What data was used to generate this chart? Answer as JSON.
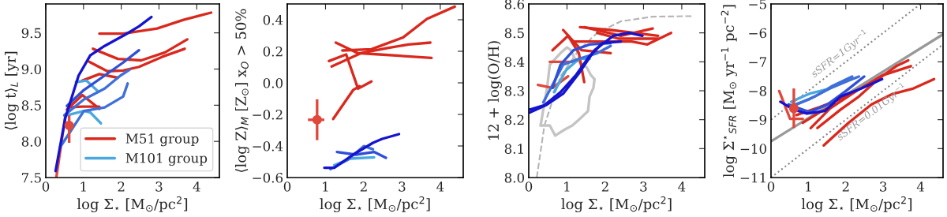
{
  "chart_data": [
    {
      "type": "line",
      "xlabel": "log Σ$_{⋆}$ [M$_{⊙}$/pc$^{2}$]",
      "ylabel": "⟨log t⟩$_{L}$ [yr]",
      "xlim": [
        0,
        4.6
      ],
      "ylim": [
        7.5,
        9.9
      ],
      "xticks": [
        0,
        1,
        2,
        3,
        4
      ],
      "yticks": [
        7.5,
        {
          "value": 8.0,
          "label": "8.0"
        },
        8.5,
        {
          "value": 9.0,
          "label": "9.0"
        },
        9.5
      ],
      "grid": false,
      "legend": "bottom right",
      "series": [
        {
          "name": "M51 group",
          "color": "#d9291e",
          "x": [
            1.42,
            2.05,
            2.95,
            3.65,
            4.38
          ],
          "values": [
            9.49,
            9.49,
            9.56,
            9.68,
            9.78
          ]
        },
        {
          "color": "#d9291e",
          "x": [
            1.25,
            1.91,
            2.53,
            3.16,
            3.75
          ],
          "values": [
            9.28,
            9.14,
            9.12,
            9.23,
            9.41
          ]
        },
        {
          "color": "#d9291e",
          "x": [
            1.15,
            1.63,
            2.05,
            2.47,
            3.09,
            3.68
          ],
          "values": [
            9.1,
            8.97,
            8.98,
            9.03,
            9.17,
            9.28
          ]
        },
        {
          "color": "#d9291e",
          "x": [
            0.97,
            1.42,
            1.91
          ],
          "values": [
            8.84,
            8.93,
            8.88
          ]
        },
        {
          "color": "#d9291e",
          "x": [
            0.56,
            0.97,
            1.42
          ],
          "values": [
            8.44,
            8.64,
            8.45
          ]
        },
        {
          "color": "#d9291e",
          "x": [
            0.62,
            0.94,
            1.42
          ],
          "values": [
            8.47,
            8.48,
            8.48
          ]
        },
        {
          "color": "#e0483c",
          "x": [
            0.28,
            0.52
          ],
          "values": [
            7.5,
            8.36
          ]
        },
        {
          "name": "M101 group",
          "color": "#4aa8de",
          "x": [
            0.56,
            1.01,
            1.18,
            1.46
          ],
          "values": [
            8.36,
            8.42,
            8.4,
            8.25
          ]
        },
        {
          "color": "#4aa8de",
          "x": [
            0.8,
            1.08,
            1.39
          ],
          "values": [
            8.82,
            8.84,
            8.69
          ]
        },
        {
          "color": "#3f6fd8",
          "x": [
            0.38,
            1.01,
            1.56,
            2.05,
            2.17
          ],
          "values": [
            7.92,
            8.42,
            8.47,
            8.62,
            8.8
          ]
        },
        {
          "color": "#3f6fd8",
          "x": [
            0.49,
            1.01,
            1.56,
            1.98,
            2.22
          ],
          "values": [
            8.36,
            8.58,
            8.73,
            8.91,
            8.99
          ]
        },
        {
          "color": "#2f4fd8",
          "x": [
            0.56,
            1.01,
            1.56,
            2.05,
            2.47
          ],
          "values": [
            8.49,
            8.71,
            8.91,
            9.09,
            9.26
          ]
        },
        {
          "color": "#1414d0",
          "x": [
            0.26,
            0.52,
            0.87,
            1.18,
            1.56,
            2.12,
            2.47,
            2.8
          ],
          "values": [
            7.59,
            8.33,
            8.91,
            9.19,
            9.32,
            9.48,
            9.59,
            9.72
          ]
        },
        {
          "type": "scatter",
          "marker": "circle",
          "color": "#e0483c",
          "x": [
            0.62
          ],
          "values": [
            8.22
          ],
          "errors": [
            [
              7.98,
              8.36
            ]
          ]
        }
      ]
    },
    {
      "type": "line",
      "xlabel": "log Σ$_{⋆}$ [M$_{⊙}$/pc$^{2}$]",
      "ylabel": "⟨log Z⟩$_{M}$ [Z$_{⊙}$] x$_{O}$ > 50%",
      "xlim": [
        0,
        4.6
      ],
      "ylim": [
        -0.6,
        0.5
      ],
      "xticks": [
        0,
        1,
        2,
        3,
        4
      ],
      "yticks": [
        {
          "value": -0.6,
          "label": "−0.6"
        },
        {
          "value": -0.4,
          "label": "−0.4"
        },
        {
          "value": -0.2,
          "label": "−0.2"
        },
        {
          "value": 0.0,
          "label": "0.0"
        },
        0.2,
        0.4
      ],
      "grid": false,
      "series": [
        {
          "color": "#d9291e",
          "x": [
            1.44,
            2.2,
            3.03,
            3.65,
            4.38
          ],
          "values": [
            0.205,
            0.213,
            0.288,
            0.405,
            0.483
          ]
        },
        {
          "color": "#d9291e",
          "x": [
            1.16,
            1.92,
            2.62,
            3.17,
            3.74
          ],
          "values": [
            0.104,
            0.188,
            0.221,
            0.243,
            0.255
          ]
        },
        {
          "color": "#d9291e",
          "x": [
            1.27,
            1.85,
            2.41,
            3.77
          ],
          "values": [
            0.255,
            0.188,
            0.18,
            0.158
          ]
        },
        {
          "color": "#d9291e",
          "x": [
            1.09,
            1.54,
            1.85,
            2.2
          ],
          "values": [
            0.138,
            0.18,
            -0.037,
            0.009
          ]
        },
        {
          "color": "#d9291e",
          "x": [
            1.2,
            1.72,
            1.89
          ],
          "values": [
            -0.229,
            -0.046,
            -0.021
          ]
        },
        {
          "color": "#4aa8de",
          "x": [
            1.23,
            1.65,
            2.27
          ],
          "values": [
            -0.522,
            -0.48,
            -0.472
          ]
        },
        {
          "color": "#3f6fd8",
          "x": [
            1.13,
            1.58,
            2.0,
            2.24
          ],
          "values": [
            -0.547,
            -0.488,
            -0.401,
            -0.421
          ]
        },
        {
          "color": "#2f4fd8",
          "x": [
            1.3,
            1.79,
            2.27,
            2.58
          ],
          "values": [
            -0.438,
            -0.455,
            -0.438,
            -0.475
          ]
        },
        {
          "color": "#1414d0",
          "x": [
            0.97,
            1.23,
            1.72,
            2.24,
            2.48,
            2.92
          ],
          "values": [
            -0.538,
            -0.538,
            -0.455,
            -0.38,
            -0.355,
            -0.325
          ]
        },
        {
          "type": "scatter",
          "marker": "circle",
          "color": "#e0483c",
          "x": [
            0.78
          ],
          "values": [
            -0.234
          ],
          "errors": [
            [
              -0.363,
              -0.104
            ]
          ],
          "xerrors": [
            [
              0.54,
              0.97
            ]
          ]
        }
      ]
    },
    {
      "type": "line",
      "xlabel": "log Σ$_{⋆}$ [M$_{⊙}$/pc$^{2}$]",
      "ylabel": "12 + log(O/H)",
      "xlim": [
        0,
        4.6
      ],
      "ylim": [
        8.0,
        8.6
      ],
      "xticks": [
        0,
        1,
        2,
        3,
        4
      ],
      "yticks": [
        {
          "value": 8.0,
          "label": "8.0"
        },
        8.1,
        8.2,
        8.3,
        8.4,
        8.5,
        8.6
      ],
      "grid": false,
      "series": [
        {
          "color": "#b4b4b4",
          "line_style": "dashed",
          "x": [
            0.21,
            0.41,
            0.83,
            1.31,
            1.79,
            2.41,
            3.24,
            4.28
          ],
          "values": [
            8.0,
            8.18,
            8.35,
            8.44,
            8.5,
            8.54,
            8.556,
            8.558
          ]
        },
        {
          "color": "#c4c4c4",
          "x": [
            0.31,
            0.38,
            0.48,
            0.55,
            0.83,
            1.0,
            1.1,
            1.21,
            1.52,
            1.62,
            1.72
          ],
          "values": [
            8.18,
            8.235,
            8.31,
            8.39,
            8.43,
            8.45,
            8.44,
            8.41,
            8.38,
            8.355,
            8.34
          ]
        },
        {
          "color": "#c4c4c4",
          "x": [
            0.31,
            0.55,
            0.69,
            0.93,
            1.14,
            1.31,
            1.55,
            1.59,
            1.69,
            1.72
          ],
          "values": [
            8.18,
            8.18,
            8.145,
            8.165,
            8.18,
            8.2,
            8.23,
            8.28,
            8.31,
            8.34
          ]
        },
        {
          "color": "#d9291e",
          "x": [
            0.9,
            1.38,
            2.14
          ],
          "values": [
            8.51,
            8.44,
            8.43
          ]
        },
        {
          "color": "#d9291e",
          "x": [
            0.62,
            1.03,
            1.31,
            1.45
          ],
          "values": [
            8.44,
            8.49,
            8.43,
            8.33
          ]
        },
        {
          "color": "#d9291e",
          "x": [
            1.34,
            2.14,
            3.38
          ],
          "values": [
            8.52,
            8.51,
            8.49
          ]
        },
        {
          "color": "#d9291e",
          "x": [
            1.45,
            2.41,
            3.24
          ],
          "values": [
            8.52,
            8.49,
            8.515
          ]
        },
        {
          "color": "#d9291e",
          "x": [
            1.17,
            2.69,
            3.1,
            3.72
          ],
          "values": [
            8.47,
            8.47,
            8.46,
            8.5
          ]
        },
        {
          "color": "#d9291e",
          "x": [
            1.79,
            2.34,
            3.38
          ],
          "values": [
            8.5,
            8.48,
            8.48
          ]
        },
        {
          "color": "#e0483c",
          "x": [
            0.55,
            1.17
          ],
          "values": [
            8.4,
            8.4
          ]
        },
        {
          "color": "#e0483c",
          "x": [
            0.24,
            0.62,
            1.03
          ],
          "values": [
            8.32,
            8.31,
            8.35
          ]
        },
        {
          "color": "#4aa8de",
          "x": [
            0.66,
            0.97,
            1.31,
            1.59
          ],
          "values": [
            8.295,
            8.37,
            8.41,
            8.41
          ]
        },
        {
          "color": "#3f6fd8",
          "x": [
            0.38,
            0.9,
            1.31,
            1.79,
            2.14
          ],
          "values": [
            8.26,
            8.39,
            8.41,
            8.43,
            8.455
          ]
        },
        {
          "color": "#2f4fd8",
          "x": [
            0.62,
            0.83,
            1.17,
            1.59,
            2.14
          ],
          "values": [
            8.31,
            8.39,
            8.44,
            8.46,
            8.465
          ]
        },
        {
          "color": "#1414d0",
          "x": [
            0.03,
            0.41,
            0.83,
            1.24,
            1.59,
            1.93,
            2.41
          ],
          "values": [
            8.235,
            8.25,
            8.295,
            8.355,
            8.42,
            8.465,
            8.47
          ]
        },
        {
          "color": "#1414d0",
          "x": [
            0.03,
            0.45,
            0.9,
            1.31,
            1.72,
            2.21,
            2.62,
            2.97
          ],
          "values": [
            8.225,
            8.25,
            8.29,
            8.36,
            8.44,
            8.49,
            8.5,
            8.49
          ]
        }
      ]
    },
    {
      "type": "line",
      "xlabel": "log Σ$_{⋆}$ [M$_{⊙}$/pc$^{2}$]",
      "ylabel": "log Σ$^{⋆}$$_{SFR}$ [M$_{⊙}$ yr$^{−1}$ pc$^{−2}$]",
      "xlim": [
        0,
        4.6
      ],
      "ylim": [
        -11,
        -5
      ],
      "xticks": [
        0,
        1,
        2,
        3,
        4
      ],
      "yticks": [
        {
          "value": -11,
          "label": "−11"
        },
        {
          "value": -10,
          "label": "−10"
        },
        {
          "value": -9,
          "label": "−9"
        },
        {
          "value": -8,
          "label": "−8"
        },
        {
          "value": -7,
          "label": "−7"
        },
        {
          "value": -6,
          "label": "−6"
        },
        {
          "value": -5,
          "label": "−5"
        }
      ],
      "grid": false,
      "annotations": [
        "sSFR=1Gyr$^{−1}$",
        "sSFR=0.01Gyr$^{−1}$"
      ],
      "series": [
        {
          "color": "#888888",
          "line_style": "dotted",
          "x": [
            0,
            4.0
          ],
          "values": [
            -9,
            -5
          ]
        },
        {
          "color": "#888888",
          "line_style": "dotted",
          "x": [
            0,
            4.6
          ],
          "values": [
            -11,
            -6.4
          ]
        },
        {
          "color": "#999999",
          "x": [
            0,
            4.6
          ],
          "values": [
            -9.75,
            -6.05
          ]
        },
        {
          "color": "#d9291e",
          "x": [
            1.41,
            2.07,
            2.69,
            3.25,
            3.81,
            4.36
          ],
          "values": [
            -9.89,
            -9.11,
            -8.47,
            -8.11,
            -7.92,
            -7.6
          ]
        },
        {
          "color": "#d9291e",
          "x": [
            1.24,
            1.86,
            2.35,
            2.9,
            3.35,
            3.67
          ],
          "values": [
            -9.29,
            -8.65,
            -8.2,
            -7.56,
            -7.15,
            -6.95
          ]
        },
        {
          "color": "#d9291e",
          "x": [
            1.06,
            1.58,
            2.28,
            2.97,
            3.74
          ],
          "values": [
            -9.29,
            -8.61,
            -8.01,
            -7.47,
            -7.15
          ]
        },
        {
          "color": "#d9291e",
          "x": [
            0.68,
            1.31,
            1.86,
            2.28
          ],
          "values": [
            -8.84,
            -8.56,
            -8.29,
            -8.01
          ]
        },
        {
          "color": "#d9291e",
          "x": [
            0.85,
            1.31,
            1.72
          ],
          "values": [
            -9.11,
            -8.74,
            -8.47
          ]
        },
        {
          "color": "#e0483c",
          "x": [
            0.22,
            0.51,
            0.85
          ],
          "values": [
            -8.01,
            -8.97,
            -8.97
          ]
        },
        {
          "color": "#4aa8de",
          "x": [
            0.54,
            1.03,
            1.44
          ],
          "values": [
            -8.38,
            -8.1,
            -7.97
          ]
        },
        {
          "color": "#3f6fd8",
          "x": [
            0.61,
            1.17,
            1.65,
            2.17
          ],
          "values": [
            -8.52,
            -8.2,
            -7.83,
            -7.51
          ]
        },
        {
          "color": "#3f6fd8",
          "x": [
            0.47,
            1.03,
            1.58,
            2.07,
            2.35
          ],
          "values": [
            -8.56,
            -8.29,
            -7.92,
            -7.65,
            -7.51
          ]
        },
        {
          "color": "#2f4fd8",
          "x": [
            0.47,
            1.03,
            1.51,
            2.0,
            2.49
          ],
          "values": [
            -8.47,
            -8.74,
            -8.47,
            -8.01,
            -7.51
          ]
        },
        {
          "color": "#1414d0",
          "x": [
            0.25,
            0.61,
            0.96,
            1.44,
            1.86,
            2.42,
            2.97
          ],
          "values": [
            -8.38,
            -8.65,
            -8.79,
            -8.7,
            -8.2,
            -7.92,
            -7.6
          ]
        },
        {
          "type": "scatter",
          "marker": "circle",
          "color": "#e0483c",
          "x": [
            0.61
          ],
          "values": [
            -8.61
          ],
          "errors": [
            [
              -9.29,
              -7.92
            ]
          ]
        }
      ]
    }
  ]
}
